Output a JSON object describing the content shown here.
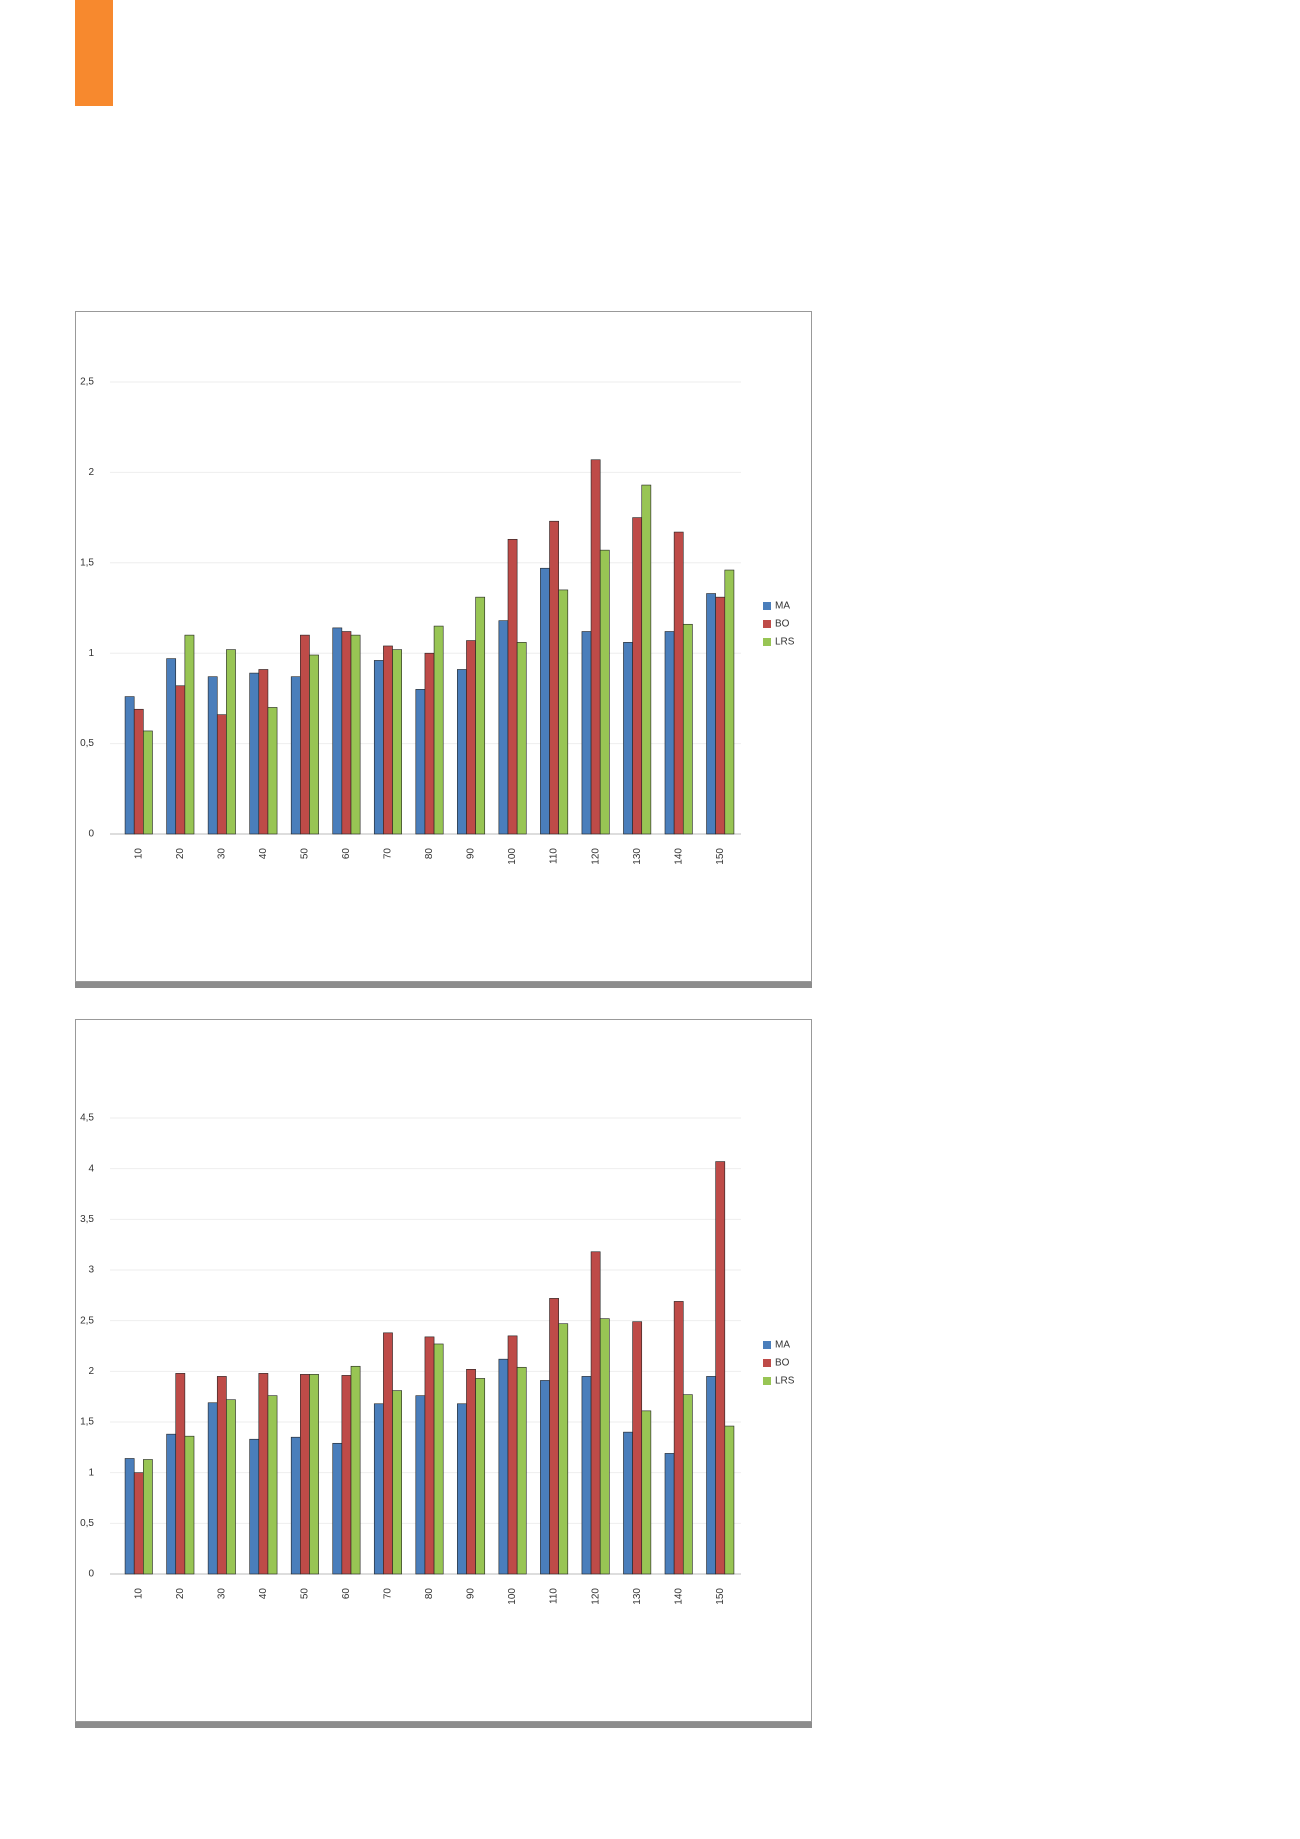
{
  "chart_data": [
    {
      "type": "bar",
      "categories": [
        "10",
        "20",
        "30",
        "40",
        "50",
        "60",
        "70",
        "80",
        "90",
        "100",
        "110",
        "120",
        "130",
        "140",
        "150"
      ],
      "series": [
        {
          "name": "MA",
          "color": "#4a7ebb",
          "values": [
            0.76,
            0.97,
            0.87,
            0.89,
            0.87,
            1.14,
            0.96,
            0.8,
            0.91,
            1.18,
            1.47,
            1.12,
            1.06,
            1.12,
            1.33
          ]
        },
        {
          "name": "BO",
          "color": "#be4b48",
          "values": [
            0.69,
            0.82,
            0.66,
            0.91,
            1.1,
            1.12,
            1.04,
            1.0,
            1.07,
            1.63,
            1.73,
            2.07,
            1.75,
            1.67,
            1.31
          ]
        },
        {
          "name": "LRS",
          "color": "#98c554",
          "values": [
            0.57,
            1.1,
            1.02,
            0.7,
            0.99,
            1.1,
            1.02,
            1.15,
            1.31,
            1.06,
            1.35,
            1.57,
            1.93,
            1.16,
            1.46
          ]
        }
      ],
      "ylim": [
        0,
        2.5
      ],
      "yticks": [
        0,
        {
          "value": 0.5,
          "label": "0,5"
        },
        1,
        {
          "value": 1.5,
          "label": "1,5"
        },
        2,
        {
          "value": 2.5,
          "label": "2,5"
        }
      ],
      "grid": true,
      "legend": "right"
    },
    {
      "type": "bar",
      "categories": [
        "10",
        "20",
        "30",
        "40",
        "50",
        "60",
        "70",
        "80",
        "90",
        "100",
        "110",
        "120",
        "130",
        "140",
        "150"
      ],
      "series": [
        {
          "name": "MA",
          "color": "#4a7ebb",
          "values": [
            1.14,
            1.38,
            1.69,
            1.33,
            1.35,
            1.29,
            1.68,
            1.76,
            1.68,
            2.12,
            1.91,
            1.95,
            1.4,
            1.19,
            1.95
          ]
        },
        {
          "name": "BO",
          "color": "#be4b48",
          "values": [
            1.0,
            1.98,
            1.95,
            1.98,
            1.97,
            1.96,
            2.38,
            2.34,
            2.02,
            2.35,
            2.72,
            3.18,
            2.49,
            2.69,
            4.07
          ]
        },
        {
          "name": "LRS",
          "color": "#98c554",
          "values": [
            1.13,
            1.36,
            1.72,
            1.76,
            1.97,
            2.05,
            1.81,
            2.27,
            1.93,
            2.04,
            2.47,
            2.52,
            1.61,
            1.77,
            1.46
          ]
        }
      ],
      "ylim": [
        0,
        4.5
      ],
      "yticks": [
        0,
        {
          "value": 0.5,
          "label": "0,5"
        },
        1,
        {
          "value": 1.5,
          "label": "1,5"
        },
        2,
        {
          "value": 2.5,
          "label": "2,5"
        },
        3,
        {
          "value": 3.5,
          "label": "3,5"
        },
        4,
        {
          "value": 4.5,
          "label": "4,5"
        }
      ],
      "grid": true,
      "legend": "right"
    }
  ]
}
